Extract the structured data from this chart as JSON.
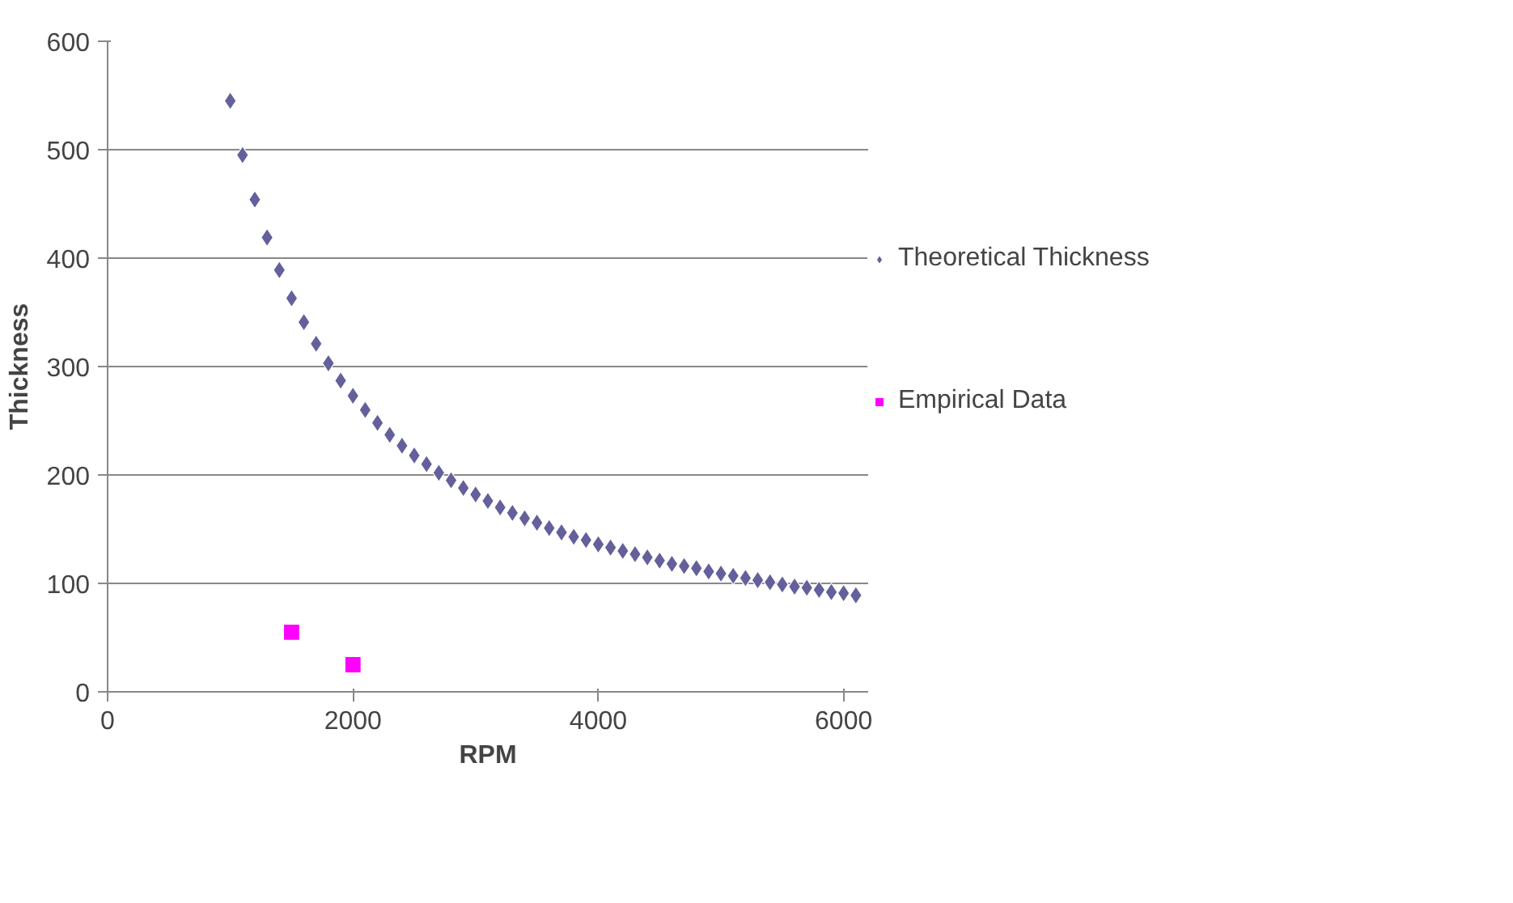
{
  "chart_data": {
    "type": "scatter",
    "xlabel": "RPM",
    "ylabel": "Thickness",
    "xlim": [
      0,
      6200
    ],
    "xticks": [
      0,
      2000,
      4000,
      6000
    ],
    "ylim": [
      0,
      600
    ],
    "yticks": [
      0,
      100,
      200,
      300,
      400,
      500,
      600
    ],
    "grid": "y",
    "legend": "right",
    "series": [
      {
        "name": "Theoretical Thickness",
        "color": "#64609b",
        "marker": "diamond",
        "x": [
          1000,
          1100,
          1200,
          1300,
          1400,
          1500,
          1600,
          1700,
          1800,
          1900,
          2000,
          2100,
          2200,
          2300,
          2400,
          2500,
          2600,
          2700,
          2800,
          2900,
          3000,
          3100,
          3200,
          3300,
          3400,
          3500,
          3600,
          3700,
          3800,
          3900,
          4000,
          4100,
          4200,
          4300,
          4400,
          4500,
          4600,
          4700,
          4800,
          4900,
          5000,
          5100,
          5200,
          5300,
          5400,
          5500,
          5600,
          5700,
          5800,
          5900,
          6000,
          6100
        ],
        "values": [
          545,
          495,
          454,
          419,
          389,
          363,
          341,
          321,
          303,
          287,
          273,
          260,
          248,
          237,
          227,
          218,
          210,
          202,
          195,
          188,
          182,
          176,
          170,
          165,
          160,
          156,
          151,
          147,
          143,
          140,
          136,
          133,
          130,
          127,
          124,
          121,
          118,
          116,
          114,
          111,
          109,
          107,
          105,
          103,
          101,
          99,
          97,
          96,
          94,
          92,
          91,
          89
        ]
      },
      {
        "name": "Empirical Data",
        "color": "#ff00ff",
        "marker": "square",
        "x": [
          1500,
          2000
        ],
        "values": [
          55,
          25
        ]
      }
    ]
  }
}
